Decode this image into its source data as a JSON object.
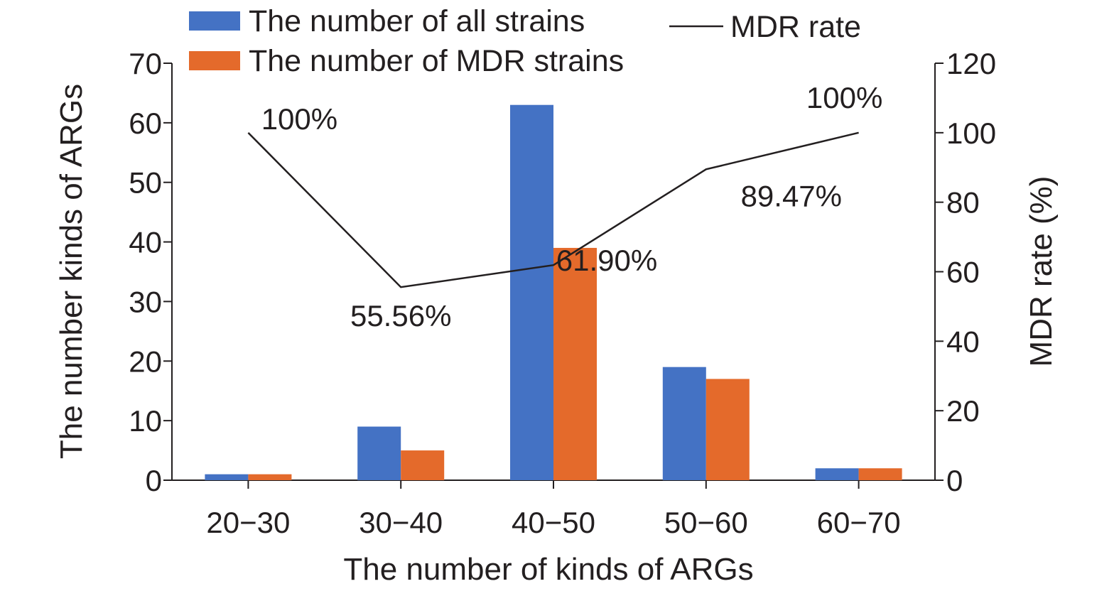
{
  "chart_data": {
    "type": "bar",
    "categories": [
      "20−30",
      "30−40",
      "40−50",
      "50−60",
      "60−70"
    ],
    "series": [
      {
        "name": "The number of all strains",
        "type": "bar",
        "axis": "left",
        "color": "#4472c4",
        "values": [
          1,
          9,
          63,
          19,
          2
        ]
      },
      {
        "name": "The number of MDR strains",
        "type": "bar",
        "axis": "left",
        "color": "#e46a2b",
        "values": [
          1,
          5,
          39,
          17,
          2
        ]
      },
      {
        "name": "MDR rate",
        "type": "line",
        "axis": "right",
        "color": "#231f20",
        "values": [
          100,
          55.56,
          61.9,
          89.47,
          100
        ],
        "data_labels": [
          "100%",
          "55.56%",
          "61.90%",
          "89.47%",
          "100%"
        ]
      }
    ],
    "xlabel": "The number of kinds of ARGs",
    "ylabel": "The number kinds of ARGs",
    "y2label": "MDR rate (%)",
    "ylim": [
      0,
      70
    ],
    "y_ticks": [
      0,
      10,
      20,
      30,
      40,
      50,
      60,
      70
    ],
    "y2lim": [
      0,
      120
    ],
    "y2_ticks": [
      0,
      20,
      40,
      60,
      80,
      100,
      120
    ],
    "grid": false,
    "legend_position": "top"
  }
}
